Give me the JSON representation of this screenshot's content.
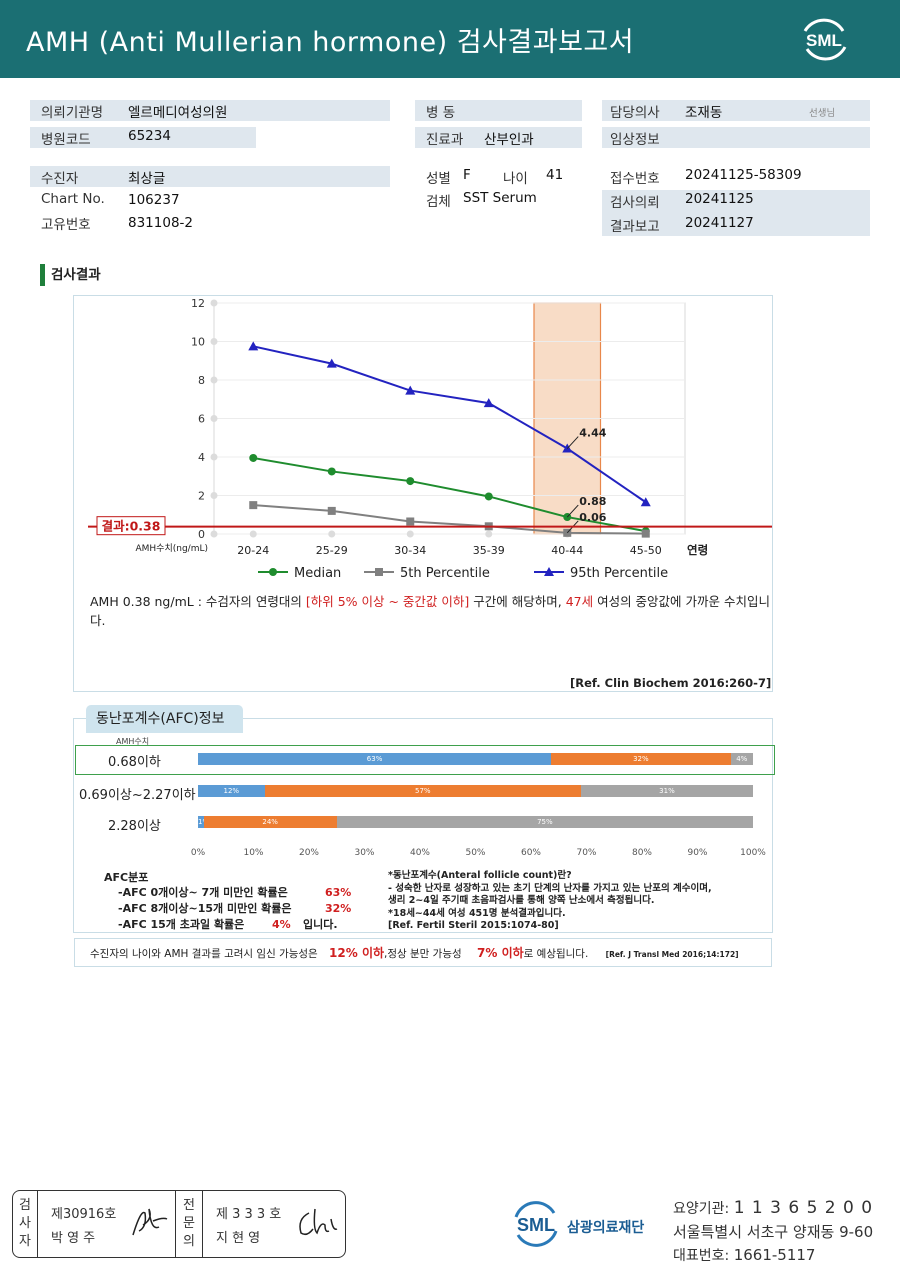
{
  "header": {
    "title": "AMH (Anti Mullerian hormone) 검사결과보고서",
    "logo_text": "SML"
  },
  "info": {
    "institution_label": "의뢰기관명",
    "institution": "엘르메디여성의원",
    "hospital_code_label": "병원코드",
    "hospital_code": "65234",
    "ward_label": "병 동",
    "ward": "",
    "department_label": "진료과",
    "department": "산부인과",
    "doctor_label": "담당의사",
    "doctor": "조재동",
    "doctor_suffix": "선생님",
    "clinical_label": "임상정보",
    "clinical": "",
    "patient_label": "수진자",
    "patient": "최상글",
    "chart_label": "Chart No.",
    "chart_no": "106237",
    "unique_label": "고유번호",
    "unique_no": "831108-2",
    "sex_label": "성별",
    "sex": "F",
    "age_label": "나이",
    "age": "41",
    "specimen_label": "검체",
    "specimen": "SST Serum",
    "receipt_label": "접수번호",
    "receipt_no": "20241125-58309",
    "request_label": "검사의뢰",
    "request_date": "20241125",
    "report_label": "결과보고",
    "report_date": "20241127"
  },
  "section_title": "검사결과",
  "chart_data": {
    "type": "line",
    "categories": [
      "20-24",
      "25-29",
      "30-34",
      "35-39",
      "40-44",
      "45-50"
    ],
    "xlabel": "연령",
    "ylabel": "AMH수치(ng/mL)",
    "ylim": [
      0,
      12
    ],
    "yticks": [
      0,
      2,
      4,
      6,
      8,
      10,
      12
    ],
    "highlight_category": "40-44",
    "result_line": {
      "value": 0.38,
      "label": "결과:0.38"
    },
    "series": [
      {
        "name": "Median",
        "color": "#1f8c2e",
        "marker": "circle",
        "values": [
          3.95,
          3.25,
          2.75,
          1.95,
          0.88,
          0.15
        ]
      },
      {
        "name": "5th Percentile",
        "color": "#808080",
        "marker": "square",
        "values": [
          1.5,
          1.2,
          0.65,
          0.4,
          0.06,
          0.02
        ]
      },
      {
        "name": "95th Percentile",
        "color": "#2323c0",
        "marker": "triangle",
        "values": [
          9.75,
          8.85,
          7.45,
          6.8,
          4.44,
          1.65
        ]
      }
    ],
    "annotations": [
      "4.44",
      "0.88",
      "0.06"
    ]
  },
  "summary": {
    "part1": "AMH  0.38 ng/mL : 수검자의 연령대의 ",
    "range": "[하위 5% 이상 ~ 중간값 이하]",
    "part2": " 구간에 해당하며, ",
    "age": "47세",
    "part3": " 여성의 중앙값에 가까운 수치입니다.",
    "ref": "[Ref. Clin Biochem 2016:260-7]"
  },
  "afc": {
    "title": "동난포계수(AFC)정보",
    "amh_label": "AMH수치",
    "colors": {
      "blue": "#5b9bd5",
      "orange": "#ed7d31",
      "gray": "#a5a5a5"
    },
    "rows": [
      {
        "label": "0.68이하",
        "segments": [
          63,
          32,
          4
        ],
        "labels": [
          "63%",
          "32%",
          "4%"
        ]
      },
      {
        "label": "0.69이상~2.27이하",
        "segments": [
          12,
          57,
          31
        ],
        "labels": [
          "12%",
          "57%",
          "31%"
        ]
      },
      {
        "label": "2.28이상",
        "segments": [
          1,
          24,
          75
        ],
        "labels": [
          "1%",
          "24%",
          "75%"
        ]
      }
    ],
    "axis": [
      "0%",
      "10%",
      "20%",
      "30%",
      "40%",
      "50%",
      "60%",
      "70%",
      "80%",
      "90%",
      "100%"
    ],
    "dist_title": "AFC분포",
    "dist1": "-AFC  0개이상~ 7개 미만인 확률은",
    "dist1_val": "63%",
    "dist2": "-AFC  8개이상~15개 미만인 확률은",
    "dist2_val": "32%",
    "dist3": "-AFC  15개 초과일 확률은",
    "dist3_val": "4%",
    "dist3_end": "입니다.",
    "note1": "*동난포계수(Anteral  follicle  count)란?",
    "note2": "- 성숙한 난자로 성장하고 있는 초기 단계의 난자를 가지고 있는 난포의 계수이며,",
    "note3": "  생리 2~4일 주기때 초음파검사를 통해 양쪽 난소에서 측정됩니다.",
    "note4": "*18세~44세 여성 451명 분석결과입니다.",
    "note5": "[Ref. Fertil Steril 2015:1074-80]"
  },
  "bottom": {
    "text1": "수진자의  나이와 AMH 결과를 고려시 임신 가능성은",
    "val1": "12% 이하",
    "text2": ",정상 분만 가능성",
    "val2": "7% 이하",
    "text3": "로 예상됩니다.",
    "ref": "[Ref. J Transl Med 2016;14:172]"
  },
  "signature": {
    "role1": "검사자",
    "num1": "제30916호",
    "name1": "박  영  주",
    "role2": "전문의",
    "num2": "제 3 3 3 호",
    "name2": "지  현  영"
  },
  "footer": {
    "org_logo": "SML",
    "org_name": "삼광의료재단",
    "code_label": "요양기관:",
    "code": "1 1 3 6 5 2 0 0",
    "address": "서울특별시 서초구 양재동 9-60",
    "phone_label": "대표번호:",
    "phone": "1661-5117"
  }
}
